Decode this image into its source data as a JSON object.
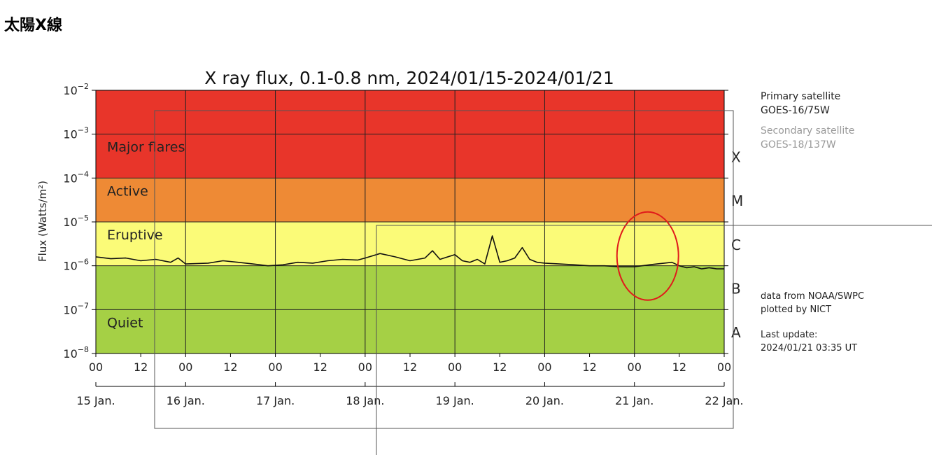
{
  "page": {
    "title": "太陽X線"
  },
  "side": {
    "primary_label": "Primary satellite",
    "primary_value": "GOES-16/75W",
    "secondary_label": "Secondary satellite",
    "secondary_value": "GOES-18/137W",
    "source_line1": "data from NOAA/SWPC",
    "source_line2": "plotted by NICT",
    "update_label": "Last update:",
    "update_value": "2024/01/21 03:35 UT"
  },
  "chart_data": {
    "type": "line",
    "title": "X ray flux, 0.1-0.8 nm, 2024/01/15-2024/01/21",
    "ylabel": "Flux (Watts/m²)",
    "yscale": "log",
    "ylim": [
      1e-08,
      0.01
    ],
    "xlim_hours": [
      0,
      168
    ],
    "grid": true,
    "y_ticks": [
      {
        "value": 1e-08,
        "base": "10",
        "exp": "−8"
      },
      {
        "value": 1e-07,
        "base": "10",
        "exp": "−7"
      },
      {
        "value": 1e-06,
        "base": "10",
        "exp": "−6"
      },
      {
        "value": 1e-05,
        "base": "10",
        "exp": "−5"
      },
      {
        "value": 0.0001,
        "base": "10",
        "exp": "−4"
      },
      {
        "value": 0.001,
        "base": "10",
        "exp": "−3"
      },
      {
        "value": 0.01,
        "base": "10",
        "exp": "−2"
      }
    ],
    "x_hour_ticks": [
      "00",
      "12",
      "00",
      "12",
      "00",
      "12",
      "00",
      "12",
      "00",
      "12",
      "00",
      "12",
      "00",
      "12",
      "00"
    ],
    "x_day_labels": [
      "15 Jan.",
      "16 Jan.",
      "17 Jan.",
      "18 Jan.",
      "19 Jan.",
      "20 Jan.",
      "21 Jan.",
      "22 Jan."
    ],
    "bands": [
      {
        "label": "Major flares",
        "from": 0.0001,
        "to": 0.01,
        "color": "#e8352a"
      },
      {
        "label": "Active",
        "from": 1e-05,
        "to": 0.0001,
        "color": "#ee8a35"
      },
      {
        "label": "Eruptive",
        "from": 1e-06,
        "to": 1e-05,
        "color": "#fbfb78"
      },
      {
        "label": "Quiet",
        "from": 1e-08,
        "to": 1e-06,
        "color": "#a5d045"
      }
    ],
    "classes": [
      {
        "label": "X",
        "value": 0.0003
      },
      {
        "label": "M",
        "value": 3e-05
      },
      {
        "label": "C",
        "value": 3e-06
      },
      {
        "label": "B",
        "value": 3e-07
      },
      {
        "label": "A",
        "value": 3e-08
      }
    ],
    "series": [
      {
        "color": "#111111",
        "points": [
          [
            0,
            1.6e-06
          ],
          [
            4,
            1.45e-06
          ],
          [
            8,
            1.5e-06
          ],
          [
            12,
            1.3e-06
          ],
          [
            16,
            1.4e-06
          ],
          [
            20,
            1.2e-06
          ],
          [
            22,
            1.5e-06
          ],
          [
            24,
            1.1e-06
          ],
          [
            30,
            1.15e-06
          ],
          [
            34,
            1.3e-06
          ],
          [
            38,
            1.2e-06
          ],
          [
            42,
            1.1e-06
          ],
          [
            46,
            1e-06
          ],
          [
            50,
            1.05e-06
          ],
          [
            54,
            1.2e-06
          ],
          [
            58,
            1.15e-06
          ],
          [
            62,
            1.3e-06
          ],
          [
            66,
            1.4e-06
          ],
          [
            70,
            1.35e-06
          ],
          [
            72,
            1.5e-06
          ],
          [
            76,
            1.9e-06
          ],
          [
            80,
            1.6e-06
          ],
          [
            84,
            1.3e-06
          ],
          [
            88,
            1.5e-06
          ],
          [
            90,
            2.2e-06
          ],
          [
            92,
            1.4e-06
          ],
          [
            96,
            1.8e-06
          ],
          [
            98,
            1.3e-06
          ],
          [
            100,
            1.2e-06
          ],
          [
            102,
            1.4e-06
          ],
          [
            104,
            1.1e-06
          ],
          [
            106,
            4.8e-06
          ],
          [
            108,
            1.2e-06
          ],
          [
            110,
            1.3e-06
          ],
          [
            112,
            1.5e-06
          ],
          [
            114,
            2.6e-06
          ],
          [
            116,
            1.4e-06
          ],
          [
            118,
            1.2e-06
          ],
          [
            120,
            1.15e-06
          ],
          [
            124,
            1.1e-06
          ],
          [
            128,
            1.05e-06
          ],
          [
            132,
            1e-06
          ],
          [
            136,
            1e-06
          ],
          [
            140,
            9.5e-07
          ],
          [
            144,
            9.5e-07
          ],
          [
            146,
            1e-06
          ],
          [
            148,
            1.05e-06
          ],
          [
            150,
            1.1e-06
          ],
          [
            152,
            1.15e-06
          ],
          [
            154,
            1.2e-06
          ],
          [
            156,
            1e-06
          ],
          [
            158,
            9e-07
          ],
          [
            160,
            9.5e-07
          ],
          [
            162,
            8.5e-07
          ],
          [
            164,
            9e-07
          ],
          [
            166,
            8.5e-07
          ],
          [
            168,
            8.5e-07
          ]
        ]
      },
      {
        "color": "#111111",
        "points": []
      }
    ],
    "annotations": [
      {
        "type": "circle",
        "center_hours": 144,
        "center_value": 3e-06
      }
    ]
  }
}
